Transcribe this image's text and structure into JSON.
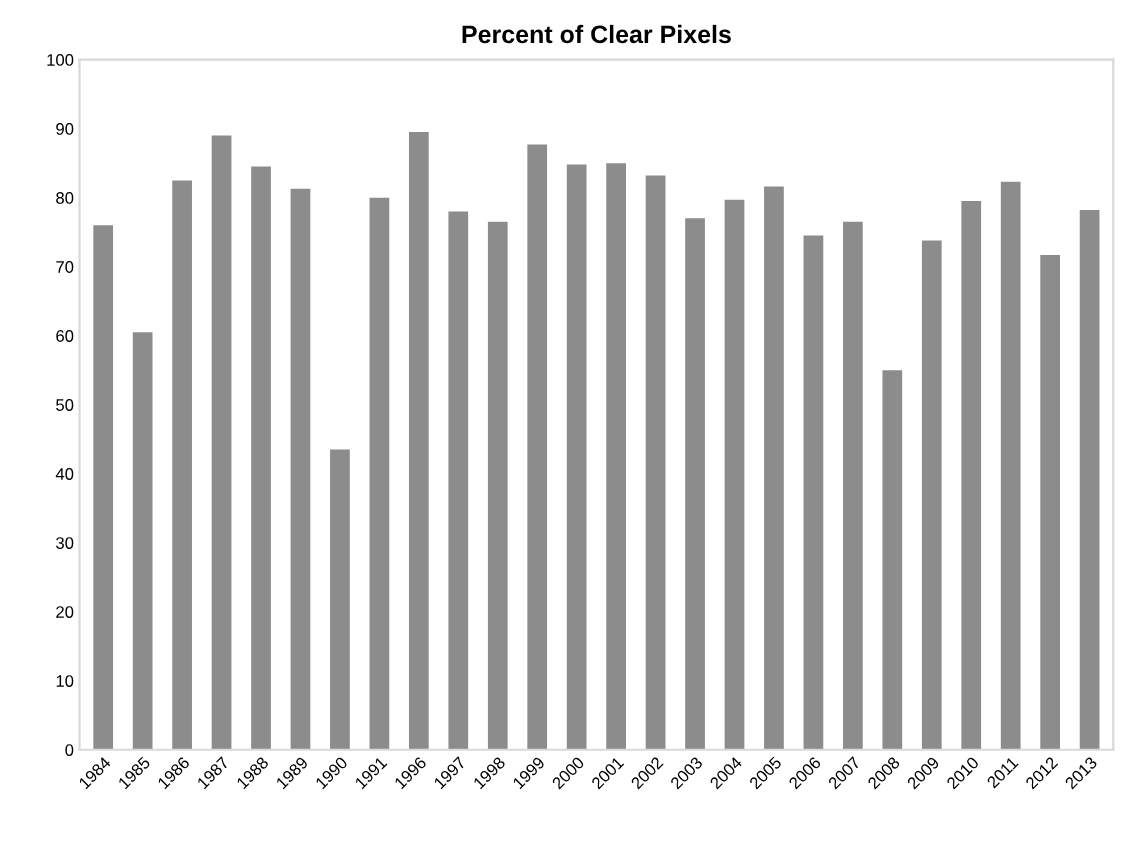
{
  "chart_data": {
    "type": "bar",
    "title": "Percent of Clear Pixels",
    "categories": [
      "1984",
      "1985",
      "1986",
      "1987",
      "1988",
      "1989",
      "1990",
      "1991",
      "1996",
      "1997",
      "1998",
      "1999",
      "2000",
      "2001",
      "2002",
      "2003",
      "2004",
      "2005",
      "2006",
      "2007",
      "2008",
      "2009",
      "2010",
      "2011",
      "2012",
      "2013"
    ],
    "values": [
      76,
      60.5,
      82.5,
      89,
      84.5,
      81.3,
      43.5,
      80,
      89.5,
      78,
      76.5,
      87.7,
      84.8,
      85,
      83.2,
      77,
      79.7,
      81.6,
      74.5,
      76.5,
      55,
      73.8,
      79.5,
      82.3,
      71.7,
      78.2
    ],
    "color": "#8c8c8c",
    "ylim": [
      0,
      100
    ],
    "yticks": [
      0,
      10,
      20,
      30,
      40,
      50,
      60,
      70,
      80,
      90,
      100
    ],
    "grid": false,
    "legend": false
  }
}
